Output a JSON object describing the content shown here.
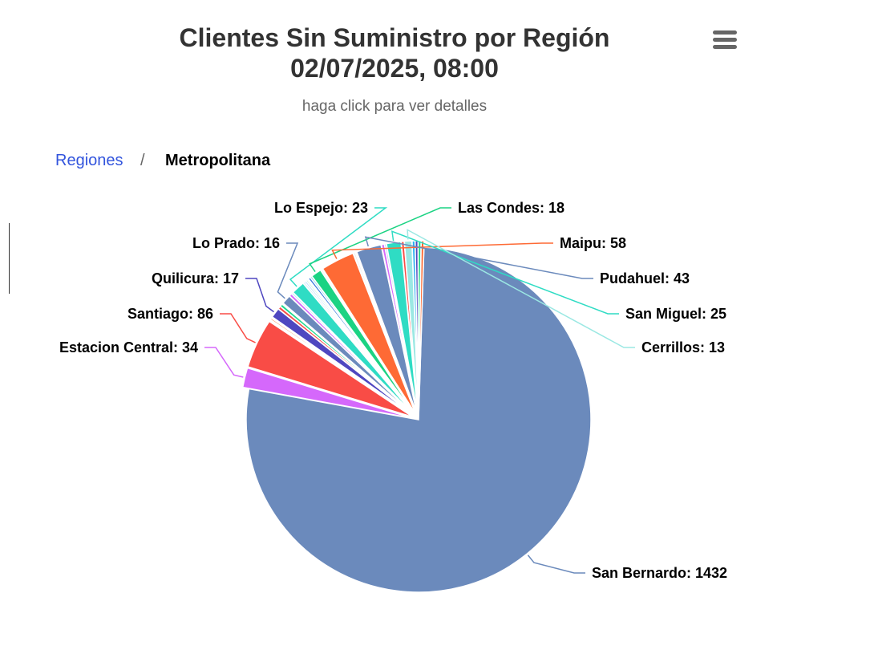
{
  "header": {
    "title_line1": "Clientes Sin Suministro por Región",
    "title_line2": "02/07/2025, 08:00",
    "subtitle": "haga click para ver detalles"
  },
  "breadcrumb": {
    "root": "Regiones",
    "separator": "/",
    "current": "Metropolitana"
  },
  "menu": {
    "icon": "hamburger-menu-icon"
  },
  "chart_data": {
    "type": "pie",
    "slices": [
      {
        "name": "San Bernardo",
        "value": 1432,
        "color": "#6b8abc",
        "label": true
      },
      {
        "name": "Estacion Central",
        "value": 34,
        "color": "#d568fb",
        "label": true
      },
      {
        "name": "Santiago",
        "value": 86,
        "color": "#f94c46",
        "label": true
      },
      {
        "name": "",
        "value": 2,
        "color": "#c8f0e6",
        "label": false
      },
      {
        "name": "",
        "value": 3,
        "color": "#fe9a6a",
        "label": false
      },
      {
        "name": "",
        "value": 2,
        "color": "#d9b27a",
        "label": false
      },
      {
        "name": "Quilicura",
        "value": 17,
        "color": "#4f47c0",
        "label": true
      },
      {
        "name": "",
        "value": 5,
        "color": "#f94c46",
        "label": false
      },
      {
        "name": "",
        "value": 5,
        "color": "#1fd98f",
        "label": false
      },
      {
        "name": "",
        "value": 2,
        "color": "#f7c5a0",
        "label": false
      },
      {
        "name": "Lo Prado",
        "value": 16,
        "color": "#6b8abc",
        "label": true
      },
      {
        "name": "",
        "value": 5,
        "color": "#d568fb",
        "label": false
      },
      {
        "name": "",
        "value": 3,
        "color": "#a7ecf0",
        "label": false
      },
      {
        "name": "Lo Espejo",
        "value": 23,
        "color": "#2fdcc4",
        "label": true
      },
      {
        "name": "",
        "value": 3,
        "color": "#bde9f6",
        "label": false
      },
      {
        "name": "",
        "value": 3,
        "color": "#a9d4ff",
        "label": false
      },
      {
        "name": "",
        "value": 3,
        "color": "#c4f2da",
        "label": false
      },
      {
        "name": "",
        "value": 2,
        "color": "#fff2b0",
        "label": false
      },
      {
        "name": "",
        "value": 4,
        "color": "#3a7bdc",
        "label": false
      },
      {
        "name": "",
        "value": 3,
        "color": "#6fd1e6",
        "label": false
      },
      {
        "name": "Las Condes",
        "value": 18,
        "color": "#1bd383",
        "label": true
      },
      {
        "name": "",
        "value": 3,
        "color": "#f4f4f4",
        "label": false
      },
      {
        "name": "Maipu",
        "value": 58,
        "color": "#fe6a35",
        "label": true
      },
      {
        "name": "",
        "value": 3,
        "color": "#e6e6e6",
        "label": false
      },
      {
        "name": "",
        "value": 2,
        "color": "#f7d9c4",
        "label": false
      },
      {
        "name": "Pudahuel",
        "value": 43,
        "color": "#6b8abc",
        "label": true
      },
      {
        "name": "",
        "value": 5,
        "color": "#d568fb",
        "label": false
      },
      {
        "name": "",
        "value": 3,
        "color": "#a7c8ec",
        "label": false
      },
      {
        "name": "San Miguel",
        "value": 25,
        "color": "#2fdcc4",
        "label": true
      },
      {
        "name": "",
        "value": 5,
        "color": "#f94c46",
        "label": false
      },
      {
        "name": "Cerrillos",
        "value": 13,
        "color": "#9be8e3",
        "label": true
      },
      {
        "name": "",
        "value": 5,
        "color": "#2ab0f0",
        "label": false
      },
      {
        "name": "",
        "value": 5,
        "color": "#4f47c0",
        "label": false
      },
      {
        "name": "",
        "value": 5,
        "color": "#1fd98f",
        "label": false
      },
      {
        "name": "",
        "value": 5,
        "color": "#fe6a35",
        "label": false
      }
    ]
  }
}
